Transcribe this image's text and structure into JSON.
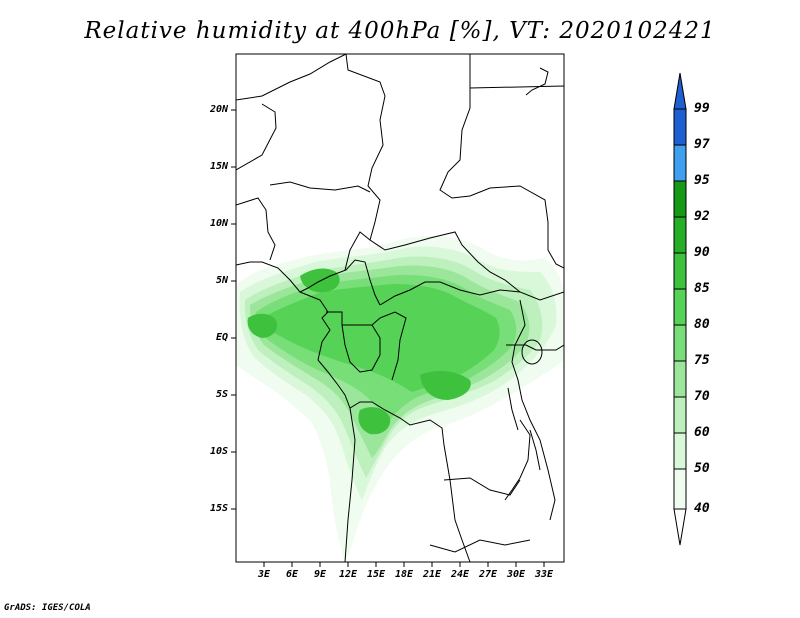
{
  "title": "Relative humidity at 400hPa [%], VT: 2020102421",
  "credit": "GrADS: IGES/COLA",
  "map": {
    "lat_labels": [
      "20N",
      "15N",
      "10N",
      "5N",
      "EQ",
      "5S",
      "10S",
      "15S"
    ],
    "lon_labels": [
      "3E",
      "6E",
      "9E",
      "12E",
      "15E",
      "18E",
      "21E",
      "24E",
      "27E",
      "30E",
      "33E"
    ]
  },
  "colorbar": {
    "levels": [
      "99",
      "97",
      "95",
      "92",
      "90",
      "85",
      "80",
      "75",
      "70",
      "60",
      "50",
      "40"
    ],
    "colors": [
      "#1e5fd2",
      "#2a7ee6",
      "#3fa0f0",
      "#169a16",
      "#26ae26",
      "#3ec23e",
      "#56d256",
      "#78de78",
      "#9be69b",
      "#bdf0bd",
      "#d9f7d9",
      "#effcef"
    ]
  }
}
